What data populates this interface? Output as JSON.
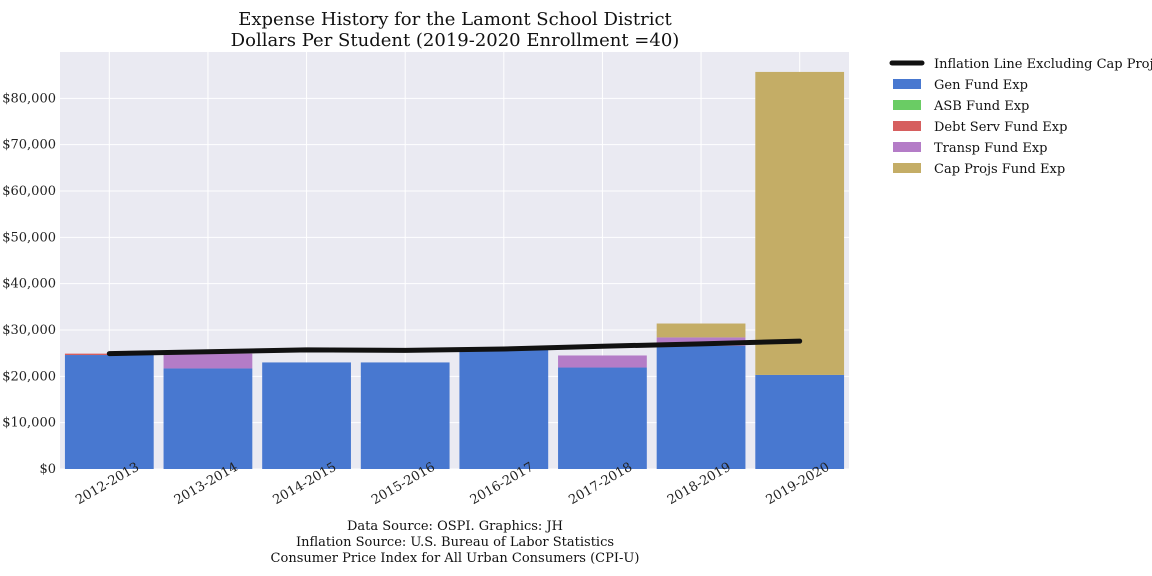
{
  "chart_data": {
    "type": "bar",
    "stacked": true,
    "title": "Expense History for the Lamont School District",
    "subtitle": "Dollars Per Student (2019-2020 Enrollment =40)",
    "categories": [
      "2012-2013",
      "2013-2014",
      "2014-2015",
      "2015-2016",
      "2016-2017",
      "2017-2018",
      "2018-2019",
      "2019-2020"
    ],
    "series": [
      {
        "name": "Gen Fund Exp",
        "color": "#4878d0",
        "values": [
          24600,
          21700,
          23000,
          23000,
          25700,
          21900,
          26600,
          20300
        ]
      },
      {
        "name": "ASB Fund Exp",
        "color": "#6acc64",
        "values": [
          0,
          0,
          0,
          0,
          0,
          0,
          0,
          0
        ]
      },
      {
        "name": "Debt Serv Fund Exp",
        "color": "#d65f5f",
        "values": [
          300,
          0,
          0,
          0,
          0,
          0,
          0,
          0
        ]
      },
      {
        "name": "Transp Fund Exp",
        "color": "#b47cc7",
        "values": [
          0,
          3200,
          0,
          0,
          0,
          2600,
          1800,
          0
        ]
      },
      {
        "name": "Cap Projs Fund Exp",
        "color": "#c4ad66",
        "values": [
          0,
          0,
          0,
          0,
          0,
          0,
          3000,
          65400
        ]
      }
    ],
    "line": {
      "name": "Inflation Line Excluding Cap Projs",
      "color": "#111111",
      "values": [
        24900,
        25300,
        25700,
        25600,
        25900,
        26500,
        27000,
        27600
      ]
    },
    "ylim": [
      0,
      90000
    ],
    "yticks": [
      0,
      10000,
      20000,
      30000,
      40000,
      50000,
      60000,
      70000,
      80000
    ],
    "ytick_labels": [
      "$0",
      "$10,000",
      "$20,000",
      "$30,000",
      "$40,000",
      "$50,000",
      "$60,000",
      "$70,000",
      "$80,000"
    ],
    "grid": true,
    "legend_position": "outside-right",
    "source_lines": [
      "Data Source: OSPI. Graphics: JH",
      "Inflation Source: U.S. Bureau of Labor Statistics",
      "Consumer Price Index for All Urban Consumers (CPI-U)"
    ]
  }
}
